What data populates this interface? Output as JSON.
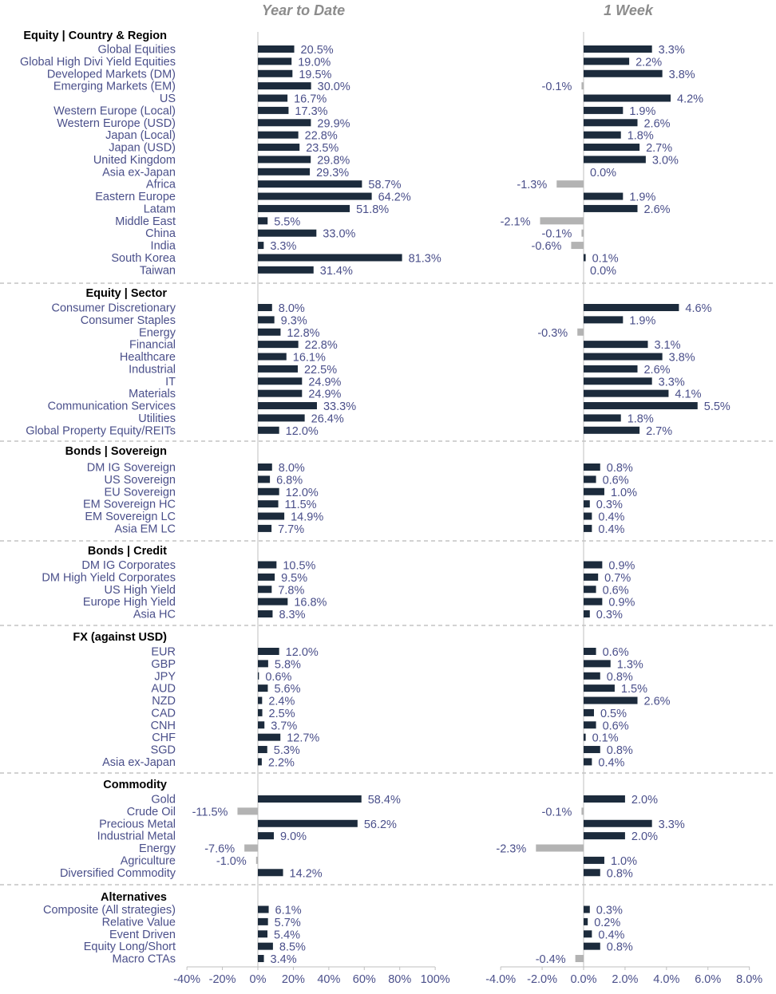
{
  "chart_data": {
    "type": "bar",
    "orientation": "horizontal",
    "colors": {
      "positive": "#1c2b3c",
      "negative": "#b3b3b3",
      "label_text": "#4a4f8a",
      "header_text": "#000000",
      "title_text": "#8c8c8c"
    },
    "panels": [
      {
        "title": "Year to Date",
        "xlim": [
          -40,
          100
        ],
        "ticks": [
          -40,
          -20,
          0,
          20,
          40,
          60,
          80,
          100
        ],
        "tick_labels": [
          "-40%",
          "-20%",
          "0%",
          "20%",
          "40%",
          "60%",
          "80%",
          "100%"
        ]
      },
      {
        "title": "1 Week",
        "xlim": [
          -4,
          8
        ],
        "ticks": [
          -4,
          -2,
          0,
          2,
          4,
          6,
          8
        ],
        "tick_labels": [
          "-4.0%",
          "-2.0%",
          "0.0%",
          "2.0%",
          "4.0%",
          "6.0%",
          "8.0%"
        ]
      }
    ],
    "groups": [
      {
        "header": "Equity | Country & Region",
        "rows": [
          {
            "label": "Global Equities",
            "ytd": 20.5,
            "ytd_label": "20.5%",
            "wk": 3.3,
            "wk_label": "3.3%"
          },
          {
            "label": "Global High Divi Yield Equities",
            "ytd": 19.0,
            "ytd_label": "19.0%",
            "wk": 2.2,
            "wk_label": "2.2%"
          },
          {
            "label": "Developed Markets (DM)",
            "ytd": 19.5,
            "ytd_label": "19.5%",
            "wk": 3.8,
            "wk_label": "3.8%"
          },
          {
            "label": "Emerging Markets (EM)",
            "ytd": 30.0,
            "ytd_label": "30.0%",
            "wk": -0.1,
            "wk_label": "-0.1%"
          },
          {
            "label": "US",
            "ytd": 16.7,
            "ytd_label": "16.7%",
            "wk": 4.2,
            "wk_label": "4.2%"
          },
          {
            "label": "Western Europe (Local)",
            "ytd": 17.3,
            "ytd_label": "17.3%",
            "wk": 1.9,
            "wk_label": "1.9%"
          },
          {
            "label": "Western Europe (USD)",
            "ytd": 29.9,
            "ytd_label": "29.9%",
            "wk": 2.6,
            "wk_label": "2.6%"
          },
          {
            "label": "Japan (Local)",
            "ytd": 22.8,
            "ytd_label": "22.8%",
            "wk": 1.8,
            "wk_label": "1.8%"
          },
          {
            "label": "Japan (USD)",
            "ytd": 23.5,
            "ytd_label": "23.5%",
            "wk": 2.7,
            "wk_label": "2.7%"
          },
          {
            "label": "United Kingdom",
            "ytd": 29.8,
            "ytd_label": "29.8%",
            "wk": 3.0,
            "wk_label": "3.0%"
          },
          {
            "label": "Asia ex-Japan",
            "ytd": 29.3,
            "ytd_label": "29.3%",
            "wk": 0.0,
            "wk_label": "0.0%"
          },
          {
            "label": "Africa",
            "ytd": 58.7,
            "ytd_label": "58.7%",
            "wk": -1.3,
            "wk_label": "-1.3%"
          },
          {
            "label": "Eastern Europe",
            "ytd": 64.2,
            "ytd_label": "64.2%",
            "wk": 1.9,
            "wk_label": "1.9%"
          },
          {
            "label": "Latam",
            "ytd": 51.8,
            "ytd_label": "51.8%",
            "wk": 2.6,
            "wk_label": "2.6%"
          },
          {
            "label": "Middle East",
            "ytd": 5.5,
            "ytd_label": "5.5%",
            "wk": -2.1,
            "wk_label": "-2.1%"
          },
          {
            "label": "China",
            "ytd": 33.0,
            "ytd_label": "33.0%",
            "wk": -0.1,
            "wk_label": "-0.1%"
          },
          {
            "label": "India",
            "ytd": 3.3,
            "ytd_label": "3.3%",
            "wk": -0.6,
            "wk_label": "-0.6%"
          },
          {
            "label": "South Korea",
            "ytd": 81.3,
            "ytd_label": "81.3%",
            "wk": 0.1,
            "wk_label": "0.1%"
          },
          {
            "label": "Taiwan",
            "ytd": 31.4,
            "ytd_label": "31.4%",
            "wk": 0.0,
            "wk_label": "0.0%"
          }
        ]
      },
      {
        "header": "Equity | Sector",
        "rows": [
          {
            "label": "Consumer Discretionary",
            "ytd": 8.0,
            "ytd_label": "8.0%",
            "wk": 4.6,
            "wk_label": "4.6%"
          },
          {
            "label": "Consumer Staples",
            "ytd": 9.3,
            "ytd_label": "9.3%",
            "wk": 1.9,
            "wk_label": "1.9%"
          },
          {
            "label": "Energy",
            "ytd": 12.8,
            "ytd_label": "12.8%",
            "wk": -0.3,
            "wk_label": "-0.3%"
          },
          {
            "label": "Financial",
            "ytd": 22.8,
            "ytd_label": "22.8%",
            "wk": 3.1,
            "wk_label": "3.1%"
          },
          {
            "label": "Healthcare",
            "ytd": 16.1,
            "ytd_label": "16.1%",
            "wk": 3.8,
            "wk_label": "3.8%"
          },
          {
            "label": "Industrial",
            "ytd": 22.5,
            "ytd_label": "22.5%",
            "wk": 2.6,
            "wk_label": "2.6%"
          },
          {
            "label": "IT",
            "ytd": 24.9,
            "ytd_label": "24.9%",
            "wk": 3.3,
            "wk_label": "3.3%"
          },
          {
            "label": "Materials",
            "ytd": 24.9,
            "ytd_label": "24.9%",
            "wk": 4.1,
            "wk_label": "4.1%"
          },
          {
            "label": "Communication Services",
            "ytd": 33.3,
            "ytd_label": "33.3%",
            "wk": 5.5,
            "wk_label": "5.5%"
          },
          {
            "label": "Utilities",
            "ytd": 26.4,
            "ytd_label": "26.4%",
            "wk": 1.8,
            "wk_label": "1.8%"
          },
          {
            "label": "Global Property Equity/REITs",
            "ytd": 12.0,
            "ytd_label": "12.0%",
            "wk": 2.7,
            "wk_label": "2.7%"
          }
        ]
      },
      {
        "header": "Bonds | Sovereign",
        "rows": [
          {
            "label": "DM IG Sovereign",
            "ytd": 8.0,
            "ytd_label": "8.0%",
            "wk": 0.8,
            "wk_label": "0.8%"
          },
          {
            "label": "US Sovereign",
            "ytd": 6.8,
            "ytd_label": "6.8%",
            "wk": 0.6,
            "wk_label": "0.6%"
          },
          {
            "label": "EU Sovereign",
            "ytd": 12.0,
            "ytd_label": "12.0%",
            "wk": 1.0,
            "wk_label": "1.0%"
          },
          {
            "label": "EM Sovereign HC",
            "ytd": 11.5,
            "ytd_label": "11.5%",
            "wk": 0.3,
            "wk_label": "0.3%"
          },
          {
            "label": "EM Sovereign LC",
            "ytd": 14.9,
            "ytd_label": "14.9%",
            "wk": 0.4,
            "wk_label": "0.4%"
          },
          {
            "label": "Asia EM LC",
            "ytd": 7.7,
            "ytd_label": "7.7%",
            "wk": 0.4,
            "wk_label": "0.4%"
          }
        ]
      },
      {
        "header": "Bonds | Credit",
        "rows": [
          {
            "label": "DM IG Corporates",
            "ytd": 10.5,
            "ytd_label": "10.5%",
            "wk": 0.9,
            "wk_label": "0.9%"
          },
          {
            "label": "DM High Yield Corporates",
            "ytd": 9.5,
            "ytd_label": "9.5%",
            "wk": 0.7,
            "wk_label": "0.7%"
          },
          {
            "label": "US High Yield",
            "ytd": 7.8,
            "ytd_label": "7.8%",
            "wk": 0.6,
            "wk_label": "0.6%"
          },
          {
            "label": "Europe High Yield",
            "ytd": 16.8,
            "ytd_label": "16.8%",
            "wk": 0.9,
            "wk_label": "0.9%"
          },
          {
            "label": "Asia HC",
            "ytd": 8.3,
            "ytd_label": "8.3%",
            "wk": 0.3,
            "wk_label": "0.3%"
          }
        ]
      },
      {
        "header": "FX (against USD)",
        "rows": [
          {
            "label": "EUR",
            "ytd": 12.0,
            "ytd_label": "12.0%",
            "wk": 0.6,
            "wk_label": "0.6%"
          },
          {
            "label": "GBP",
            "ytd": 5.8,
            "ytd_label": "5.8%",
            "wk": 1.3,
            "wk_label": "1.3%"
          },
          {
            "label": "JPY",
            "ytd": 0.6,
            "ytd_label": "0.6%",
            "wk": 0.8,
            "wk_label": "0.8%"
          },
          {
            "label": "AUD",
            "ytd": 5.6,
            "ytd_label": "5.6%",
            "wk": 1.5,
            "wk_label": "1.5%"
          },
          {
            "label": "NZD",
            "ytd": 2.4,
            "ytd_label": "2.4%",
            "wk": 2.6,
            "wk_label": "2.6%"
          },
          {
            "label": "CAD",
            "ytd": 2.5,
            "ytd_label": "2.5%",
            "wk": 0.5,
            "wk_label": "0.5%"
          },
          {
            "label": "CNH",
            "ytd": 3.7,
            "ytd_label": "3.7%",
            "wk": 0.6,
            "wk_label": "0.6%"
          },
          {
            "label": "CHF",
            "ytd": 12.7,
            "ytd_label": "12.7%",
            "wk": 0.1,
            "wk_label": "0.1%"
          },
          {
            "label": "SGD",
            "ytd": 5.3,
            "ytd_label": "5.3%",
            "wk": 0.8,
            "wk_label": "0.8%"
          },
          {
            "label": "Asia ex-Japan",
            "ytd": 2.2,
            "ytd_label": "2.2%",
            "wk": 0.4,
            "wk_label": "0.4%"
          }
        ]
      },
      {
        "header": "Commodity",
        "rows": [
          {
            "label": "Gold",
            "ytd": 58.4,
            "ytd_label": "58.4%",
            "wk": 2.0,
            "wk_label": "2.0%"
          },
          {
            "label": "Crude Oil",
            "ytd": -11.5,
            "ytd_label": "-11.5%",
            "wk": -0.1,
            "wk_label": "-0.1%"
          },
          {
            "label": "Precious Metal",
            "ytd": 56.2,
            "ytd_label": "56.2%",
            "wk": 3.3,
            "wk_label": "3.3%"
          },
          {
            "label": "Industrial Metal",
            "ytd": 9.0,
            "ytd_label": "9.0%",
            "wk": 2.0,
            "wk_label": "2.0%"
          },
          {
            "label": "Energy",
            "ytd": -7.6,
            "ytd_label": "-7.6%",
            "wk": -2.3,
            "wk_label": "-2.3%"
          },
          {
            "label": "Agriculture",
            "ytd": -1.0,
            "ytd_label": "-1.0%",
            "wk": 1.0,
            "wk_label": "1.0%"
          },
          {
            "label": "Diversified Commodity",
            "ytd": 14.2,
            "ytd_label": "14.2%",
            "wk": 0.8,
            "wk_label": "0.8%"
          }
        ]
      },
      {
        "header": "Alternatives",
        "rows": [
          {
            "label": "Composite (All strategies)",
            "ytd": 6.1,
            "ytd_label": "6.1%",
            "wk": 0.3,
            "wk_label": "0.3%"
          },
          {
            "label": "Relative Value",
            "ytd": 5.7,
            "ytd_label": "5.7%",
            "wk": 0.2,
            "wk_label": "0.2%"
          },
          {
            "label": "Event Driven",
            "ytd": 5.4,
            "ytd_label": "5.4%",
            "wk": 0.4,
            "wk_label": "0.4%"
          },
          {
            "label": "Equity Long/Short",
            "ytd": 8.5,
            "ytd_label": "8.5%",
            "wk": 0.8,
            "wk_label": "0.8%"
          },
          {
            "label": "Macro CTAs",
            "ytd": 3.4,
            "ytd_label": "3.4%",
            "wk": -0.4,
            "wk_label": "-0.4%"
          }
        ]
      }
    ]
  }
}
